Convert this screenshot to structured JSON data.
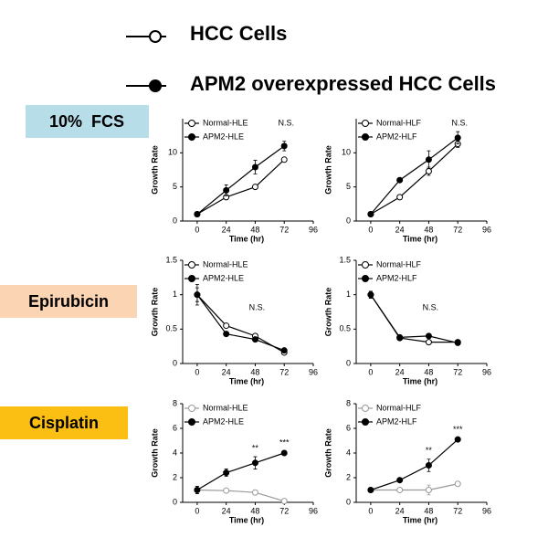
{
  "legend": [
    "HCC Cells",
    "APM2 overexpressed HCC Cells"
  ],
  "rows": [
    "10%  FCS",
    "Epirubicin",
    "Cisplatin"
  ],
  "chart_data": [
    {
      "type": "line",
      "x": [
        0,
        24,
        48,
        72
      ],
      "xlim": [
        -12,
        96
      ],
      "xticks": [
        0,
        24,
        48,
        72,
        96
      ],
      "ylim": [
        0,
        15
      ],
      "yticks": [
        0,
        5,
        10
      ],
      "xlabel": "Time (hr)",
      "ylabel": "Growth Rate",
      "annotations": [
        "N.S."
      ],
      "series": [
        {
          "name": "Normal-HLE",
          "color": "#000000",
          "marker": "open",
          "values": [
            1,
            3.5,
            5.0,
            9.0
          ],
          "errors": [
            0,
            0.3,
            0.2,
            0.2
          ]
        },
        {
          "name": "APM2-HLE",
          "color": "#000000",
          "marker": "filled",
          "values": [
            1,
            4.5,
            7.9,
            11.0
          ],
          "errors": [
            0,
            0.8,
            1.0,
            0.7
          ]
        }
      ]
    },
    {
      "type": "line",
      "x": [
        0,
        24,
        48,
        72
      ],
      "xlim": [
        -12,
        96
      ],
      "xticks": [
        0,
        24,
        48,
        72,
        96
      ],
      "ylim": [
        0,
        15
      ],
      "yticks": [
        0,
        5,
        10
      ],
      "xlabel": "Time (hr)",
      "ylabel": "Growth Rate",
      "annotations": [
        "N.S."
      ],
      "series": [
        {
          "name": "Normal-HLF",
          "color": "#000000",
          "marker": "open",
          "values": [
            1,
            3.5,
            7.3,
            11.3
          ],
          "errors": [
            0,
            0.2,
            0.6,
            0.5
          ]
        },
        {
          "name": "APM2-HLF",
          "color": "#000000",
          "marker": "filled",
          "values": [
            1,
            6.0,
            9.0,
            12.2
          ],
          "errors": [
            0,
            0.3,
            1.3,
            0.9
          ]
        }
      ]
    },
    {
      "type": "line",
      "x": [
        0,
        24,
        48,
        72
      ],
      "xlim": [
        -12,
        96
      ],
      "xticks": [
        0,
        24,
        48,
        72,
        96
      ],
      "ylim": [
        0,
        1.5
      ],
      "yticks": [
        0,
        0.5,
        1,
        1.5
      ],
      "xlabel": "Time (hr)",
      "ylabel": "Growth Rate",
      "annotations": [
        "N.S."
      ],
      "series": [
        {
          "name": "Normal-HLE",
          "color": "#000000",
          "marker": "open",
          "values": [
            1,
            0.55,
            0.4,
            0.16
          ],
          "errors": [
            0.1,
            0.02,
            0.03,
            0.02
          ]
        },
        {
          "name": "APM2-HLE",
          "color": "#000000",
          "marker": "filled",
          "values": [
            1,
            0.43,
            0.35,
            0.19
          ],
          "errors": [
            0.15,
            0.02,
            0.03,
            0.02
          ]
        }
      ]
    },
    {
      "type": "line",
      "x": [
        0,
        24,
        48,
        72
      ],
      "xlim": [
        -12,
        96
      ],
      "xticks": [
        0,
        24,
        48,
        72,
        96
      ],
      "ylim": [
        0,
        1.5
      ],
      "yticks": [
        0,
        0.5,
        1,
        1.5
      ],
      "xlabel": "Time (hr)",
      "ylabel": "Growth Rate",
      "annotations": [
        "N.S."
      ],
      "series": [
        {
          "name": "Normal-HLF",
          "color": "#000000",
          "marker": "open",
          "values": [
            1,
            0.37,
            0.31,
            0.31
          ],
          "errors": [
            0.05,
            0.02,
            0.02,
            0.02
          ]
        },
        {
          "name": "APM2-HLF",
          "color": "#000000",
          "marker": "filled",
          "values": [
            1,
            0.38,
            0.4,
            0.3
          ],
          "errors": [
            0.05,
            0.02,
            0.02,
            0.02
          ]
        }
      ]
    },
    {
      "type": "line",
      "x": [
        0,
        24,
        48,
        72
      ],
      "xlim": [
        -12,
        96
      ],
      "xticks": [
        0,
        24,
        48,
        72,
        96
      ],
      "ylim": [
        0,
        8
      ],
      "yticks": [
        0,
        2,
        4,
        6,
        8
      ],
      "xlabel": "Time (hr)",
      "ylabel": "Growth Rate",
      "annotations": [
        "**",
        "***"
      ],
      "series": [
        {
          "name": "Normal-HLE",
          "color": "#999999",
          "marker": "open",
          "values": [
            1,
            0.95,
            0.8,
            0.1
          ],
          "errors": [
            0.1,
            0.1,
            0.2,
            0.1
          ]
        },
        {
          "name": "APM2-HLE",
          "color": "#000000",
          "marker": "filled",
          "values": [
            1,
            2.4,
            3.2,
            4.0
          ],
          "errors": [
            0.3,
            0.3,
            0.5,
            0.15
          ]
        }
      ]
    },
    {
      "type": "line",
      "x": [
        0,
        24,
        48,
        72
      ],
      "xlim": [
        -12,
        96
      ],
      "xticks": [
        0,
        24,
        48,
        72,
        96
      ],
      "ylim": [
        0,
        8
      ],
      "yticks": [
        0,
        2,
        4,
        6,
        8
      ],
      "xlabel": "Time (hr)",
      "ylabel": "Growth Rate",
      "annotations": [
        "**",
        "***"
      ],
      "series": [
        {
          "name": "Normal-HLF",
          "color": "#999999",
          "marker": "open",
          "values": [
            1,
            1,
            1,
            1.5
          ],
          "errors": [
            0.1,
            0.1,
            0.4,
            0.1
          ]
        },
        {
          "name": "APM2-HLF",
          "color": "#000000",
          "marker": "filled",
          "values": [
            1,
            1.8,
            3.0,
            5.1
          ],
          "errors": [
            0.1,
            0.1,
            0.5,
            0.1
          ]
        }
      ]
    }
  ]
}
